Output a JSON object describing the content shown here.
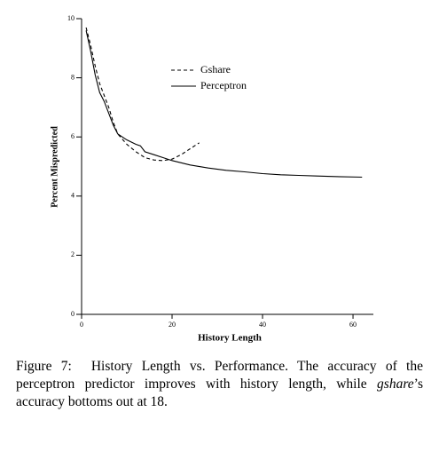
{
  "chart_data": {
    "type": "line",
    "x_label": "History Length",
    "y_label": "Percent Mispredicted",
    "xlim": [
      0,
      64.5
    ],
    "xticks": [
      0,
      20,
      40,
      60
    ],
    "ylim": [
      0,
      10
    ],
    "yticks": [
      0,
      2,
      4,
      6,
      8,
      10
    ],
    "legend": "upper center",
    "series": [
      {
        "name": "Gshare",
        "color": "#000000",
        "dashed": true,
        "x": [
          1,
          2,
          3,
          4,
          5,
          6,
          7,
          8,
          10,
          12,
          14,
          16,
          18,
          20,
          22,
          24,
          26
        ],
        "values": [
          9.7,
          9.1,
          8.4,
          7.8,
          7.4,
          7.0,
          6.5,
          6.1,
          5.75,
          5.5,
          5.3,
          5.22,
          5.2,
          5.25,
          5.4,
          5.6,
          5.8
        ]
      },
      {
        "name": "Perceptron",
        "color": "#000000",
        "dashed": false,
        "x": [
          1,
          2,
          3,
          4,
          5,
          6,
          7,
          8,
          10,
          12,
          13,
          14,
          16,
          18,
          20,
          24,
          28,
          32,
          36,
          40,
          44,
          48,
          52,
          56,
          62
        ],
        "values": [
          9.6,
          8.9,
          8.1,
          7.5,
          7.2,
          6.8,
          6.4,
          6.1,
          5.9,
          5.75,
          5.7,
          5.5,
          5.4,
          5.3,
          5.2,
          5.05,
          4.95,
          4.87,
          4.82,
          4.76,
          4.72,
          4.7,
          4.68,
          4.66,
          4.64
        ]
      }
    ],
    "caption": {
      "label": "Figure 7:",
      "parts": [
        "History Length vs. Performance. The accuracy of the perceptron predictor improves with history length, while ",
        "gshare",
        "’s accuracy bottoms out at 18."
      ]
    }
  }
}
